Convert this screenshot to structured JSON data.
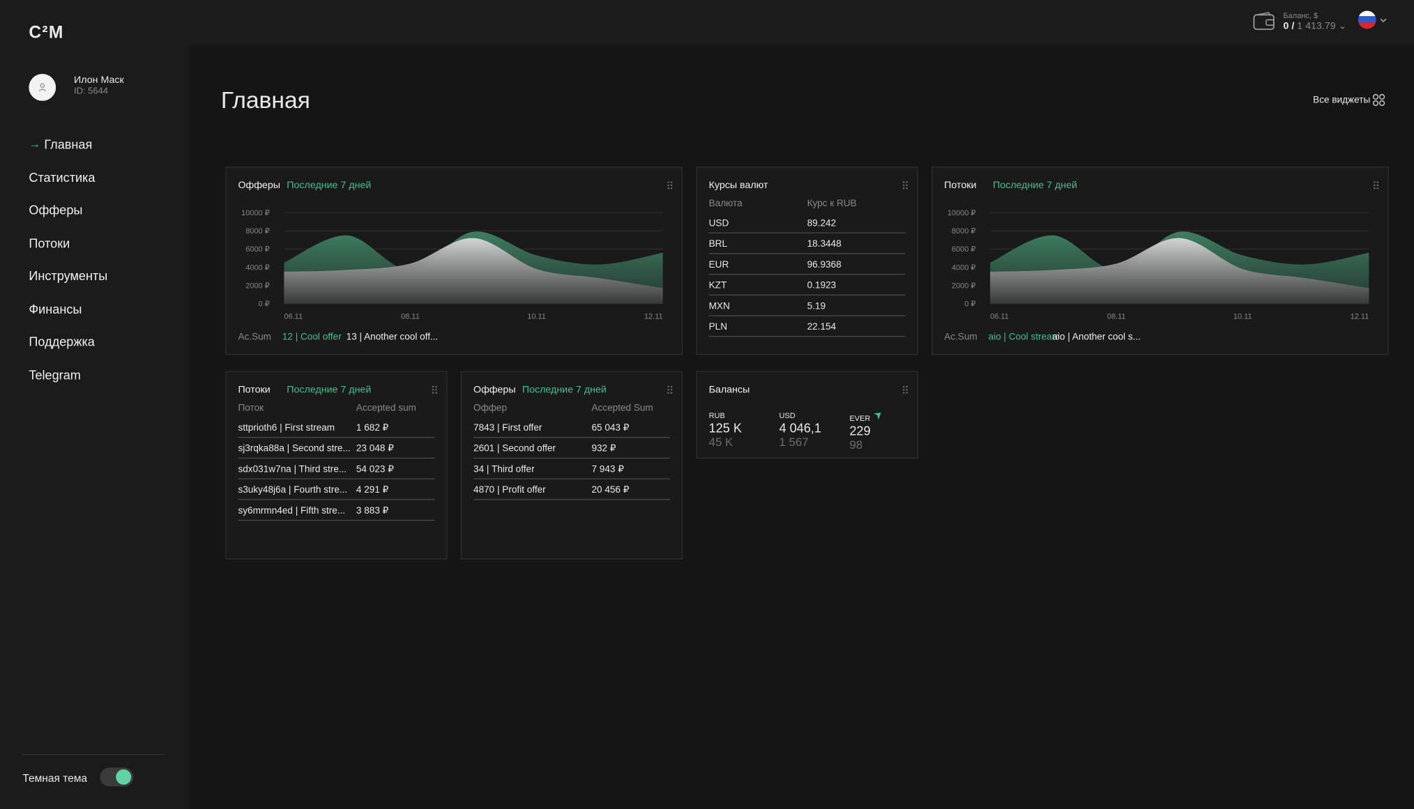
{
  "logo": "C²M",
  "user": {
    "name": "Илон Маск",
    "id": "ID: 5644"
  },
  "nav": [
    "Главная",
    "Статистика",
    "Офферы",
    "Потоки",
    "Инструменты",
    "Финансы",
    "Поддержка",
    "Telegram"
  ],
  "nav_active_marker": "→",
  "theme_label": "Темная тема",
  "balance": {
    "label": "Баланс, $",
    "current": "0 /",
    "total": "1 413.79"
  },
  "page_title": "Главная",
  "all_widgets": "Все виджеты",
  "widgets": [
    {
      "title": "Офферы",
      "period": "Последние 7 дней",
      "chart": {
        "type": "area",
        "categories": [
          "06.11",
          null,
          "08.11",
          null,
          "10.11",
          null,
          "12.11"
        ],
        "ylim": [
          0,
          10000
        ],
        "yticks": [
          {
            "value": 0,
            "label": "0 ₽"
          },
          {
            "value": 2000,
            "label": "2000 ₽"
          },
          {
            "value": 4000,
            "label": "4000 ₽"
          },
          {
            "value": 6000,
            "label": "6000 ₽"
          },
          {
            "value": 8000,
            "label": "8000 ₽"
          },
          {
            "value": 10000,
            "label": "10000 ₽"
          }
        ],
        "grid": true,
        "series": [
          {
            "color": "#3f7e60",
            "values": [
              4500,
              7500,
              3700,
              7900,
              5300,
              4300,
              5600
            ]
          },
          {
            "color": "#d9d9d9",
            "values": [
              3500,
              3700,
              4400,
              7200,
              3800,
              2800,
              1700
            ]
          }
        ]
      },
      "footer": {
        "label": "Ac.Sum",
        "items": [
          "12 | Cool offer",
          "13 | Another cool off..."
        ]
      }
    },
    {
      "title": "Курсы валют",
      "table": {
        "headers": [
          "Валюта",
          "Курс к RUB"
        ],
        "rows": [
          [
            "USD",
            "89.242"
          ],
          [
            "BRL",
            "18.3448"
          ],
          [
            "EUR",
            "96.9368"
          ],
          [
            "KZT",
            "0.1923"
          ],
          [
            "MXN",
            "5.19"
          ],
          [
            "PLN",
            "22.154"
          ]
        ]
      }
    },
    {
      "title": "Потоки",
      "period": "Последние 7 дней",
      "chart": {
        "type": "area",
        "categories": [
          "06.11",
          null,
          "08.11",
          null,
          "10.11",
          null,
          "12.11"
        ],
        "ylim": [
          0,
          10000
        ],
        "yticks": [
          {
            "value": 0,
            "label": "0 ₽"
          },
          {
            "value": 2000,
            "label": "2000 ₽"
          },
          {
            "value": 4000,
            "label": "4000 ₽"
          },
          {
            "value": 6000,
            "label": "6000 ₽"
          },
          {
            "value": 8000,
            "label": "8000 ₽"
          },
          {
            "value": 10000,
            "label": "10000 ₽"
          }
        ],
        "grid": true,
        "series": [
          {
            "color": "#3f7e60",
            "values": [
              4500,
              7500,
              3700,
              7900,
              5300,
              4300,
              5600
            ]
          },
          {
            "color": "#d9d9d9",
            "values": [
              3500,
              3700,
              4400,
              7200,
              3800,
              2800,
              1700
            ]
          }
        ]
      },
      "footer": {
        "label": "Ac.Sum",
        "items": [
          "aio | Cool stream",
          "aio | Another cool s..."
        ]
      }
    },
    {
      "title": "Потоки",
      "period": "Последние 7 дней",
      "table": {
        "headers": [
          "Поток",
          "Accepted sum"
        ],
        "rows": [
          [
            "sttprioth6 | First stream",
            "1 682 ₽"
          ],
          [
            "sj3rqka88a | Second stre...",
            "23 048 ₽"
          ],
          [
            "sdx031w7na | Third stre...",
            "54 023 ₽"
          ],
          [
            "s3uky48j6a | Fourth stre...",
            "4 291 ₽"
          ],
          [
            "sy6mrmn4ed | Fifth stre...",
            "3 883 ₽"
          ]
        ]
      }
    },
    {
      "title": "Офферы",
      "period": "Последние 7 дней",
      "table": {
        "headers": [
          "Оффер",
          "Accepted Sum"
        ],
        "rows": [
          [
            "7843 | First offer",
            "65 043 ₽"
          ],
          [
            "2601 | Second offer",
            "932 ₽"
          ],
          [
            "34 | Third offer",
            "7 943 ₽"
          ],
          [
            "4870 | Profit offer",
            "20 456 ₽"
          ]
        ]
      }
    },
    {
      "title": "Балансы",
      "balances": [
        {
          "currency": "RUB",
          "main": "125 K",
          "secondary": "45 K"
        },
        {
          "currency": "USD",
          "main": "4 046,1",
          "secondary": "1 567"
        },
        {
          "currency": "EVER",
          "main": "229",
          "secondary": "98"
        }
      ]
    }
  ]
}
